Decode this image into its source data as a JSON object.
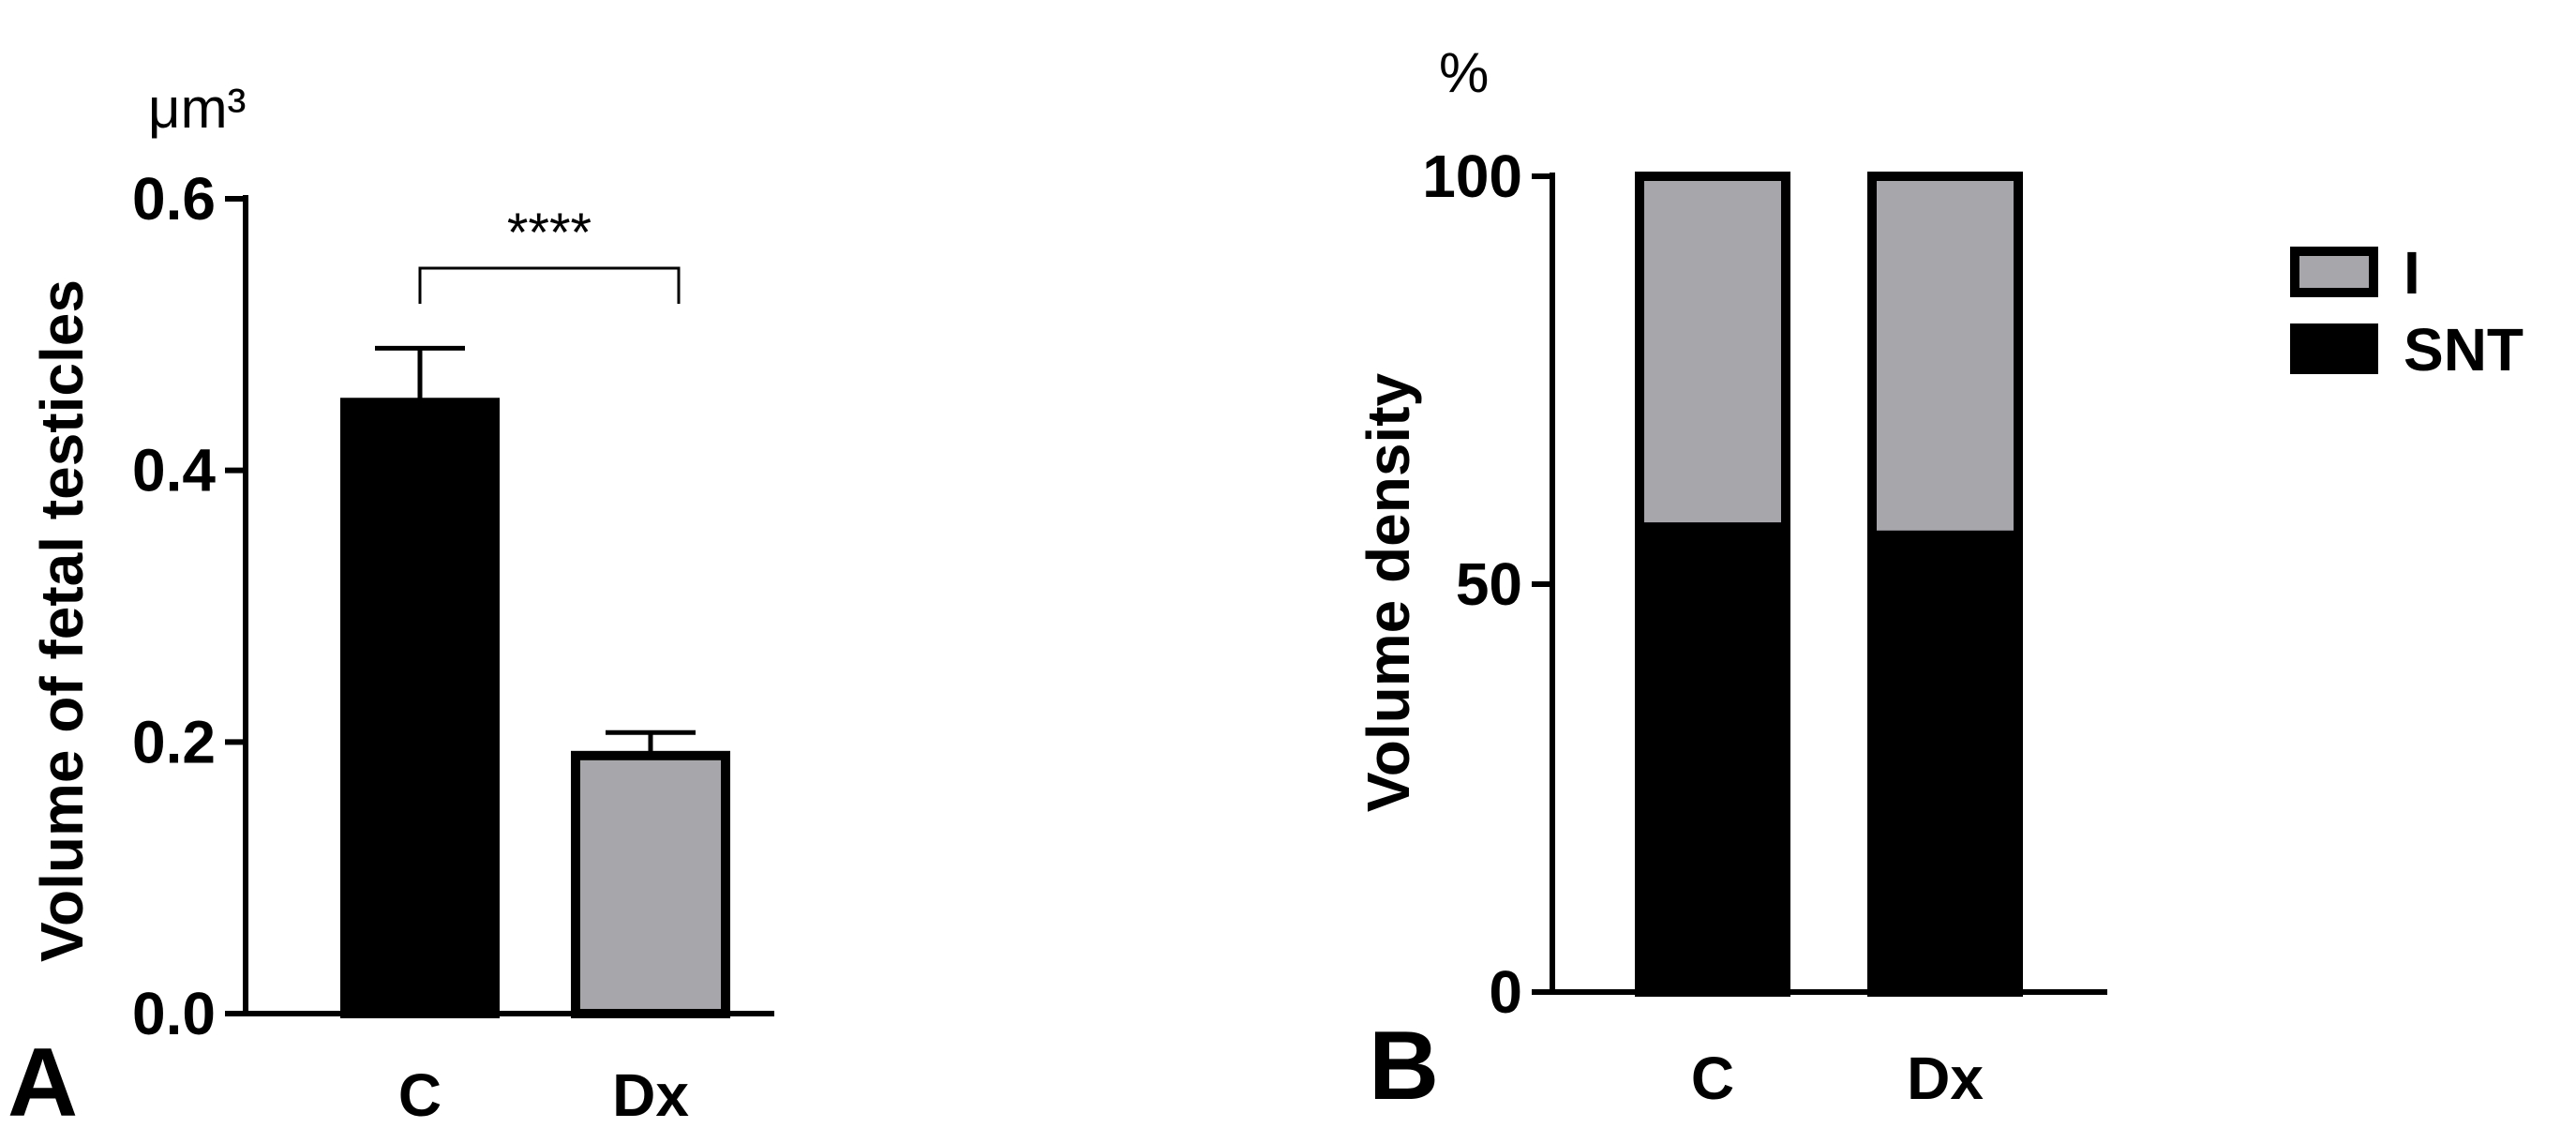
{
  "chart_data": [
    {
      "panel_letter": "A",
      "type": "bar",
      "unit": "μm³",
      "ylabel": "Volume of fetal testicles",
      "categories": [
        "C",
        "Dx"
      ],
      "values": [
        0.45,
        0.19
      ],
      "errors": [
        0.04,
        0.017
      ],
      "bar_colors": [
        "#000000",
        "#a7a7ab"
      ],
      "ylim": [
        0,
        0.6
      ],
      "yticks": [
        "0.0",
        "0.2",
        "0.4",
        "0.6"
      ],
      "significance": "****"
    },
    {
      "panel_letter": "B",
      "type": "bar",
      "stacked": true,
      "unit": "%",
      "ylabel": "Volume density",
      "categories": [
        "C",
        "Dx"
      ],
      "series": [
        {
          "name": "SNT",
          "color": "#000000",
          "values": [
            57,
            56
          ]
        },
        {
          "name": "I",
          "color": "#a7a7ab",
          "values": [
            43,
            44
          ]
        }
      ],
      "ylim": [
        0,
        100
      ],
      "yticks": [
        "0",
        "50",
        "100"
      ],
      "legend": "right"
    }
  ]
}
